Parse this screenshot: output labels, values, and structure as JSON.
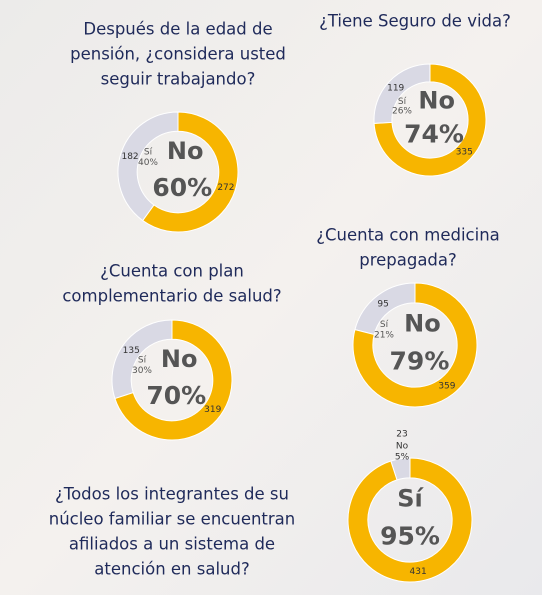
{
  "chart_data": [
    {
      "type": "donut",
      "title_lines": [
        "Después de la edad de",
        "pensión, ¿considera usted",
        "seguir trabajando?"
      ],
      "categories": [
        "Sí",
        "No"
      ],
      "values": [
        40,
        60
      ],
      "value_labels": [
        "40%",
        "60%"
      ],
      "counts": [
        182,
        272
      ],
      "colors": [
        "#d9d9e4",
        "#f7b500"
      ]
    },
    {
      "type": "donut",
      "title_lines": [
        "¿Tiene Seguro de vida?"
      ],
      "categories": [
        "Sí",
        "No"
      ],
      "values": [
        26,
        74
      ],
      "value_labels": [
        "26%",
        "74%"
      ],
      "counts": [
        119,
        335
      ],
      "colors": [
        "#d9d9e4",
        "#f7b500"
      ]
    },
    {
      "type": "donut",
      "title_lines": [
        "¿Cuenta con medicina",
        "prepagada?"
      ],
      "categories": [
        "Sí",
        "No"
      ],
      "values": [
        21,
        79
      ],
      "value_labels": [
        "21%",
        "79%"
      ],
      "counts": [
        95,
        359
      ],
      "colors": [
        "#d9d9e4",
        "#f7b500"
      ]
    },
    {
      "type": "donut",
      "title_lines": [
        "¿Cuenta con plan",
        "complementario de salud?"
      ],
      "categories": [
        "Sí",
        "No"
      ],
      "values": [
        30,
        70
      ],
      "value_labels": [
        "30%",
        "70%"
      ],
      "counts": [
        135,
        319
      ],
      "colors": [
        "#d9d9e4",
        "#f7b500"
      ]
    },
    {
      "type": "donut",
      "title_lines": [
        "¿Todos los integrantes de su",
        "núcleo familiar se encuentran",
        "afiliados a un sistema de",
        "atención en salud?"
      ],
      "categories": [
        "No",
        "Sí"
      ],
      "values": [
        5,
        95
      ],
      "value_labels": [
        "5%",
        "95%"
      ],
      "counts": [
        23,
        431
      ],
      "colors": [
        "#d9d9e4",
        "#f7b500"
      ]
    }
  ]
}
